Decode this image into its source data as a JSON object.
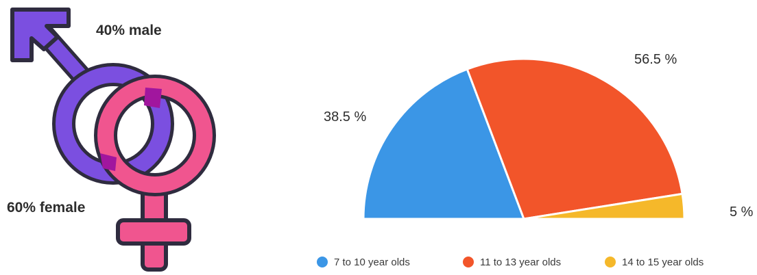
{
  "gender": {
    "male_label": "40% male",
    "female_label": "60% female",
    "male_color": "#7b4fe0",
    "female_color": "#f0558f",
    "overlap_color": "#a1169e",
    "outline_color": "#2f2c3f",
    "icon_name": "gender-symbols-icon"
  },
  "chart_data": {
    "type": "pie",
    "variant": "half",
    "labels": [
      "7 to 10 year olds",
      "11 to 13 year olds",
      "14 to 15 year olds"
    ],
    "values": [
      38.5,
      56.5,
      5
    ],
    "value_labels": [
      "38.5 %",
      "56.5 %",
      "5 %"
    ],
    "colors": [
      "#3b96e6",
      "#f2552a",
      "#f5b82a"
    ],
    "legend_position": "bottom"
  }
}
